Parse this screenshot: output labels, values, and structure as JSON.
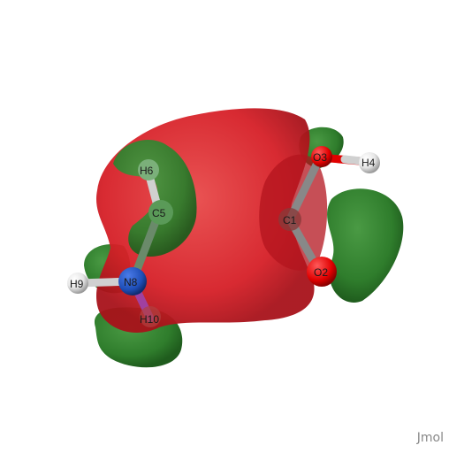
{
  "app": {
    "watermark": "Jmol"
  },
  "atoms": [
    {
      "id": "O3",
      "label": "O3",
      "element": "O",
      "color": "#e00000"
    },
    {
      "id": "H4",
      "label": "H4",
      "element": "H",
      "color": "#f0f0f0"
    },
    {
      "id": "C1",
      "label": "C1",
      "element": "C",
      "color": "#909090"
    },
    {
      "id": "O2",
      "label": "O2",
      "element": "O",
      "color": "#e00000"
    },
    {
      "id": "H6",
      "label": "H6",
      "element": "H",
      "color": "#f0f0f0"
    },
    {
      "id": "C5",
      "label": "C5",
      "element": "C",
      "color": "#909090"
    },
    {
      "id": "N8",
      "label": "N8",
      "element": "N",
      "color": "#2040d0"
    },
    {
      "id": "H9",
      "label": "H9",
      "element": "H",
      "color": "#f0f0f0"
    },
    {
      "id": "H10",
      "label": "H10",
      "element": "H",
      "color": "#f0f0f0"
    }
  ],
  "colors": {
    "positive_lobe": "#d81e28",
    "negative_lobe": "#2f7d2c",
    "background": "#ffffff"
  }
}
